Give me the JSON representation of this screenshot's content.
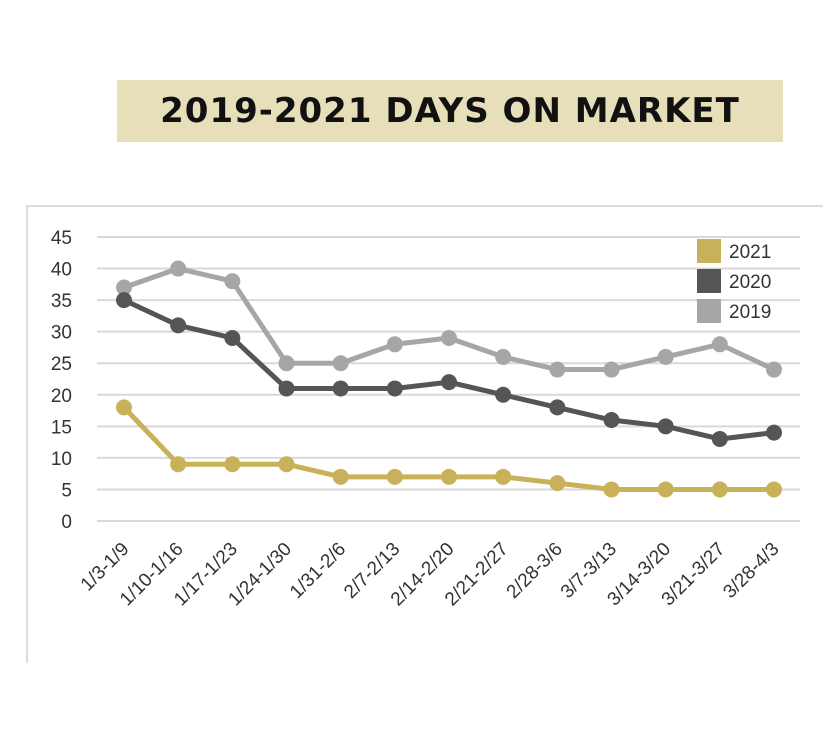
{
  "colors": {
    "title_banner": "#e6dfba",
    "grid": "#d9d9d9",
    "series_2021": "#c9b15a",
    "series_2020": "#555555",
    "series_2019": "#a6a6a6"
  },
  "chart_data": {
    "type": "line",
    "title": "2019-2021 DAYS ON MARKET",
    "xlabel": "",
    "ylabel": "",
    "ylim": [
      0,
      45
    ],
    "yticks": [
      0,
      5,
      10,
      15,
      20,
      25,
      30,
      35,
      40,
      45
    ],
    "grid": true,
    "legend_position": "top-right",
    "categories": [
      "1/3-1/9",
      "1/10-1/16",
      "1/17-1/23",
      "1/24-1/30",
      "1/31-2/6",
      "2/7-2/13",
      "2/14-2/20",
      "2/21-2/27",
      "2/28-3/6",
      "3/7-3/13",
      "3/14-3/20",
      "3/21-3/27",
      "3/28-4/3"
    ],
    "series": [
      {
        "name": "2021",
        "color": "#c9b15a",
        "values": [
          18,
          9,
          9,
          9,
          7,
          7,
          7,
          7,
          6,
          5,
          5,
          5,
          5
        ]
      },
      {
        "name": "2020",
        "color": "#555555",
        "values": [
          35,
          31,
          29,
          21,
          21,
          21,
          22,
          20,
          18,
          16,
          15,
          13,
          14
        ]
      },
      {
        "name": "2019",
        "color": "#a6a6a6",
        "values": [
          37,
          40,
          38,
          25,
          25,
          28,
          29,
          26,
          24,
          24,
          26,
          28,
          24
        ]
      }
    ]
  }
}
